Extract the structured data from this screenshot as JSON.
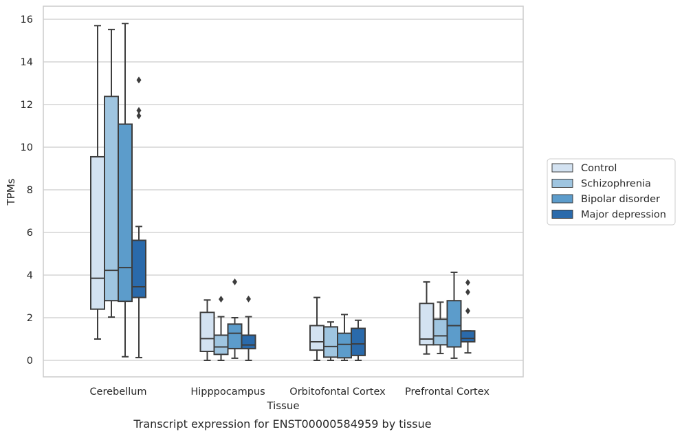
{
  "chart_data": {
    "type": "box",
    "title": "",
    "caption": "Transcript expression for ENST00000584959 by tissue",
    "xlabel": "Tissue",
    "ylabel": "TPMs",
    "ylim": [
      -0.75,
      16.6
    ],
    "yticks": [
      0,
      2,
      4,
      6,
      8,
      10,
      12,
      14,
      16
    ],
    "grid": "horizontal",
    "legend_position": "right",
    "categories": [
      "Cerebellum",
      "Hipppocampus",
      "Orbitofontal Cortex",
      "Prefrontal Cortex"
    ],
    "series": [
      {
        "name": "Control",
        "color": "#d3e2f1",
        "boxes": [
          {
            "min": 1.0,
            "q1": 2.4,
            "median": 3.85,
            "q3": 9.55,
            "max": 15.7,
            "outliers": []
          },
          {
            "min": 0.0,
            "q1": 0.42,
            "median": 1.02,
            "q3": 2.25,
            "max": 2.83,
            "outliers": []
          },
          {
            "min": 0.0,
            "q1": 0.48,
            "median": 0.87,
            "q3": 1.63,
            "max": 2.95,
            "outliers": []
          },
          {
            "min": 0.3,
            "q1": 0.73,
            "median": 1.0,
            "q3": 2.67,
            "max": 3.68,
            "outliers": []
          }
        ]
      },
      {
        "name": "Schizophrenia",
        "color": "#9fc5e0",
        "boxes": [
          {
            "min": 2.03,
            "q1": 2.8,
            "median": 4.22,
            "q3": 12.38,
            "max": 15.52,
            "outliers": []
          },
          {
            "min": 0.0,
            "q1": 0.28,
            "median": 0.63,
            "q3": 1.18,
            "max": 2.05,
            "outliers": [
              2.87
            ]
          },
          {
            "min": 0.0,
            "q1": 0.15,
            "median": 0.65,
            "q3": 1.57,
            "max": 1.8,
            "outliers": []
          },
          {
            "min": 0.32,
            "q1": 0.73,
            "median": 1.15,
            "q3": 1.93,
            "max": 2.73,
            "outliers": []
          }
        ]
      },
      {
        "name": "Bipolar disorder",
        "color": "#5c9ccb",
        "boxes": [
          {
            "min": 0.17,
            "q1": 2.77,
            "median": 4.35,
            "q3": 11.08,
            "max": 15.8,
            "outliers": []
          },
          {
            "min": 0.1,
            "q1": 0.55,
            "median": 1.27,
            "q3": 1.7,
            "max": 2.0,
            "outliers": [
              3.68
            ]
          },
          {
            "min": 0.0,
            "q1": 0.12,
            "median": 0.75,
            "q3": 1.27,
            "max": 2.15,
            "outliers": []
          },
          {
            "min": 0.1,
            "q1": 0.63,
            "median": 1.63,
            "q3": 2.8,
            "max": 4.13,
            "outliers": []
          }
        ]
      },
      {
        "name": "Major depression",
        "color": "#2a6aab",
        "boxes": [
          {
            "min": 0.13,
            "q1": 2.95,
            "median": 3.45,
            "q3": 5.63,
            "max": 6.28,
            "outliers": [
              11.47,
              11.72,
              13.15
            ]
          },
          {
            "min": 0.0,
            "q1": 0.55,
            "median": 0.72,
            "q3": 1.18,
            "max": 2.05,
            "outliers": [
              2.88
            ]
          },
          {
            "min": 0.0,
            "q1": 0.23,
            "median": 0.77,
            "q3": 1.5,
            "max": 1.88,
            "outliers": []
          },
          {
            "min": 0.35,
            "q1": 0.87,
            "median": 1.03,
            "q3": 1.38,
            "max": 1.38,
            "outliers": [
              2.32,
              3.2,
              3.65
            ]
          }
        ]
      }
    ]
  }
}
